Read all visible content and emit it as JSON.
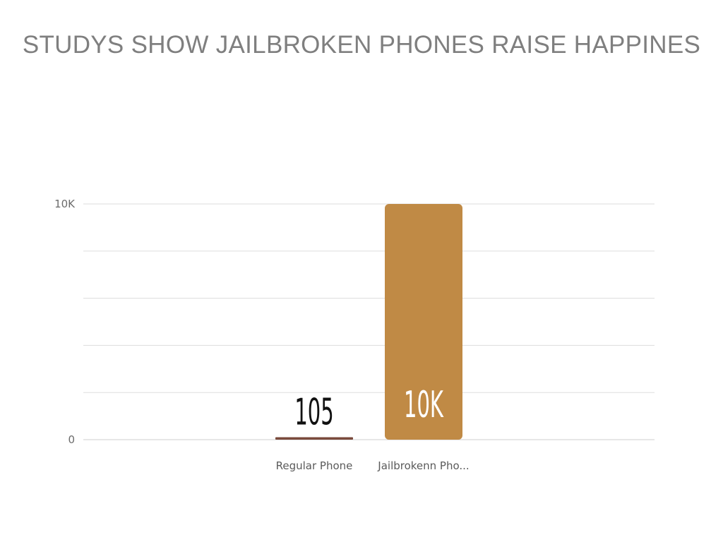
{
  "slide": {
    "title": "STUDYS SHOW JAILBROKEN PHONES RAISE HAPPINES"
  },
  "chart_data": {
    "type": "bar",
    "title": "STUDYS SHOW JAILBROKEN PHONES RAISE HAPPINES",
    "categories": [
      "Regular Phone",
      "Jailbrokenn Pho..."
    ],
    "values": [
      105,
      10000
    ],
    "data_labels": [
      "105",
      "10K"
    ],
    "bar_colors": [
      "#7a4a3c",
      "#c08a45"
    ],
    "data_label_colors": [
      "#111111",
      "#ffffff"
    ],
    "xlabel": "",
    "ylabel": "",
    "ylim": [
      0,
      10000
    ],
    "y_ticks": [
      0,
      10000
    ],
    "y_tick_labels": [
      "0",
      "10K"
    ],
    "gridlines": true,
    "gridline_count": 6,
    "legend": "none"
  }
}
